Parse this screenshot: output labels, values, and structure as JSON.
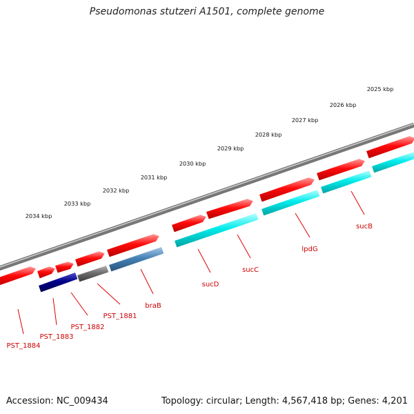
{
  "title": "Pseudomonas stutzeri A1501, complete genome",
  "footer": {
    "accession": "Accession: NC_009434",
    "stats": "Topology: circular; Length: 4,567,418 bp; Genes: 4,201"
  },
  "ruler": {
    "unit": "kbp",
    "labels": [
      "2025 kbp",
      "2026 kbp",
      "2027 kbp",
      "2028 kbp",
      "2029 kbp",
      "2030 kbp",
      "2031 kbp",
      "2032 kbp",
      "2033 kbp",
      "2034 kbp"
    ],
    "color": "#1a8a1a"
  },
  "colors": {
    "backbone": "#8a8a8a",
    "cds_forward": "#ee0000",
    "gene_label": "#cc0000",
    "reverse_palette": {
      "cyan": "#00e5e5",
      "navy": "#00007a",
      "gray": "#6e6e6e",
      "steel": "#4682b4"
    }
  },
  "genes": [
    {
      "name": "PST_1884"
    },
    {
      "name": "PST_1883"
    },
    {
      "name": "PST_1882"
    },
    {
      "name": "PST_1881"
    },
    {
      "name": "braB"
    },
    {
      "name": "sucD"
    },
    {
      "name": "sucC"
    },
    {
      "name": "lpdG"
    },
    {
      "name": "sucB"
    }
  ]
}
